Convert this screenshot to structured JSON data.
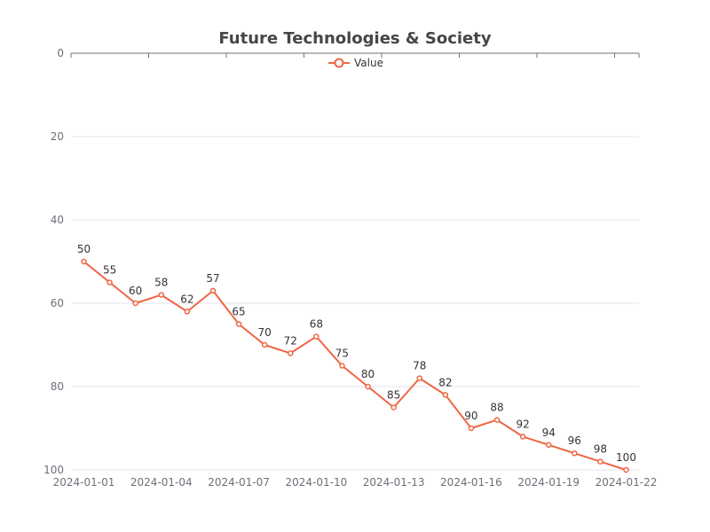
{
  "chart_data": {
    "type": "line",
    "title": "Future Technologies & Society",
    "x": [
      "2024-01-01",
      "2024-01-02",
      "2024-01-03",
      "2024-01-04",
      "2024-01-05",
      "2024-01-06",
      "2024-01-07",
      "2024-01-08",
      "2024-01-09",
      "2024-01-10",
      "2024-01-11",
      "2024-01-12",
      "2024-01-13",
      "2024-01-14",
      "2024-01-15",
      "2024-01-16",
      "2024-01-17",
      "2024-01-18",
      "2024-01-19",
      "2024-01-20",
      "2024-01-21",
      "2024-01-22"
    ],
    "x_tick_labels": [
      "2024-01-01",
      "2024-01-04",
      "2024-01-07",
      "2024-01-10",
      "2024-01-13",
      "2024-01-16",
      "2024-01-19",
      "2024-01-22"
    ],
    "series": [
      {
        "name": "Value",
        "color": "#ee6644",
        "values": [
          50,
          55,
          60,
          58,
          62,
          57,
          65,
          70,
          72,
          68,
          75,
          80,
          85,
          78,
          82,
          90,
          88,
          92,
          94,
          96,
          98,
          100
        ]
      }
    ],
    "y_ticks": [
      0,
      20,
      40,
      60,
      80,
      100
    ],
    "ylim": [
      0,
      100
    ],
    "y_inverted": true,
    "legend_position": "top-center",
    "grid": true
  }
}
